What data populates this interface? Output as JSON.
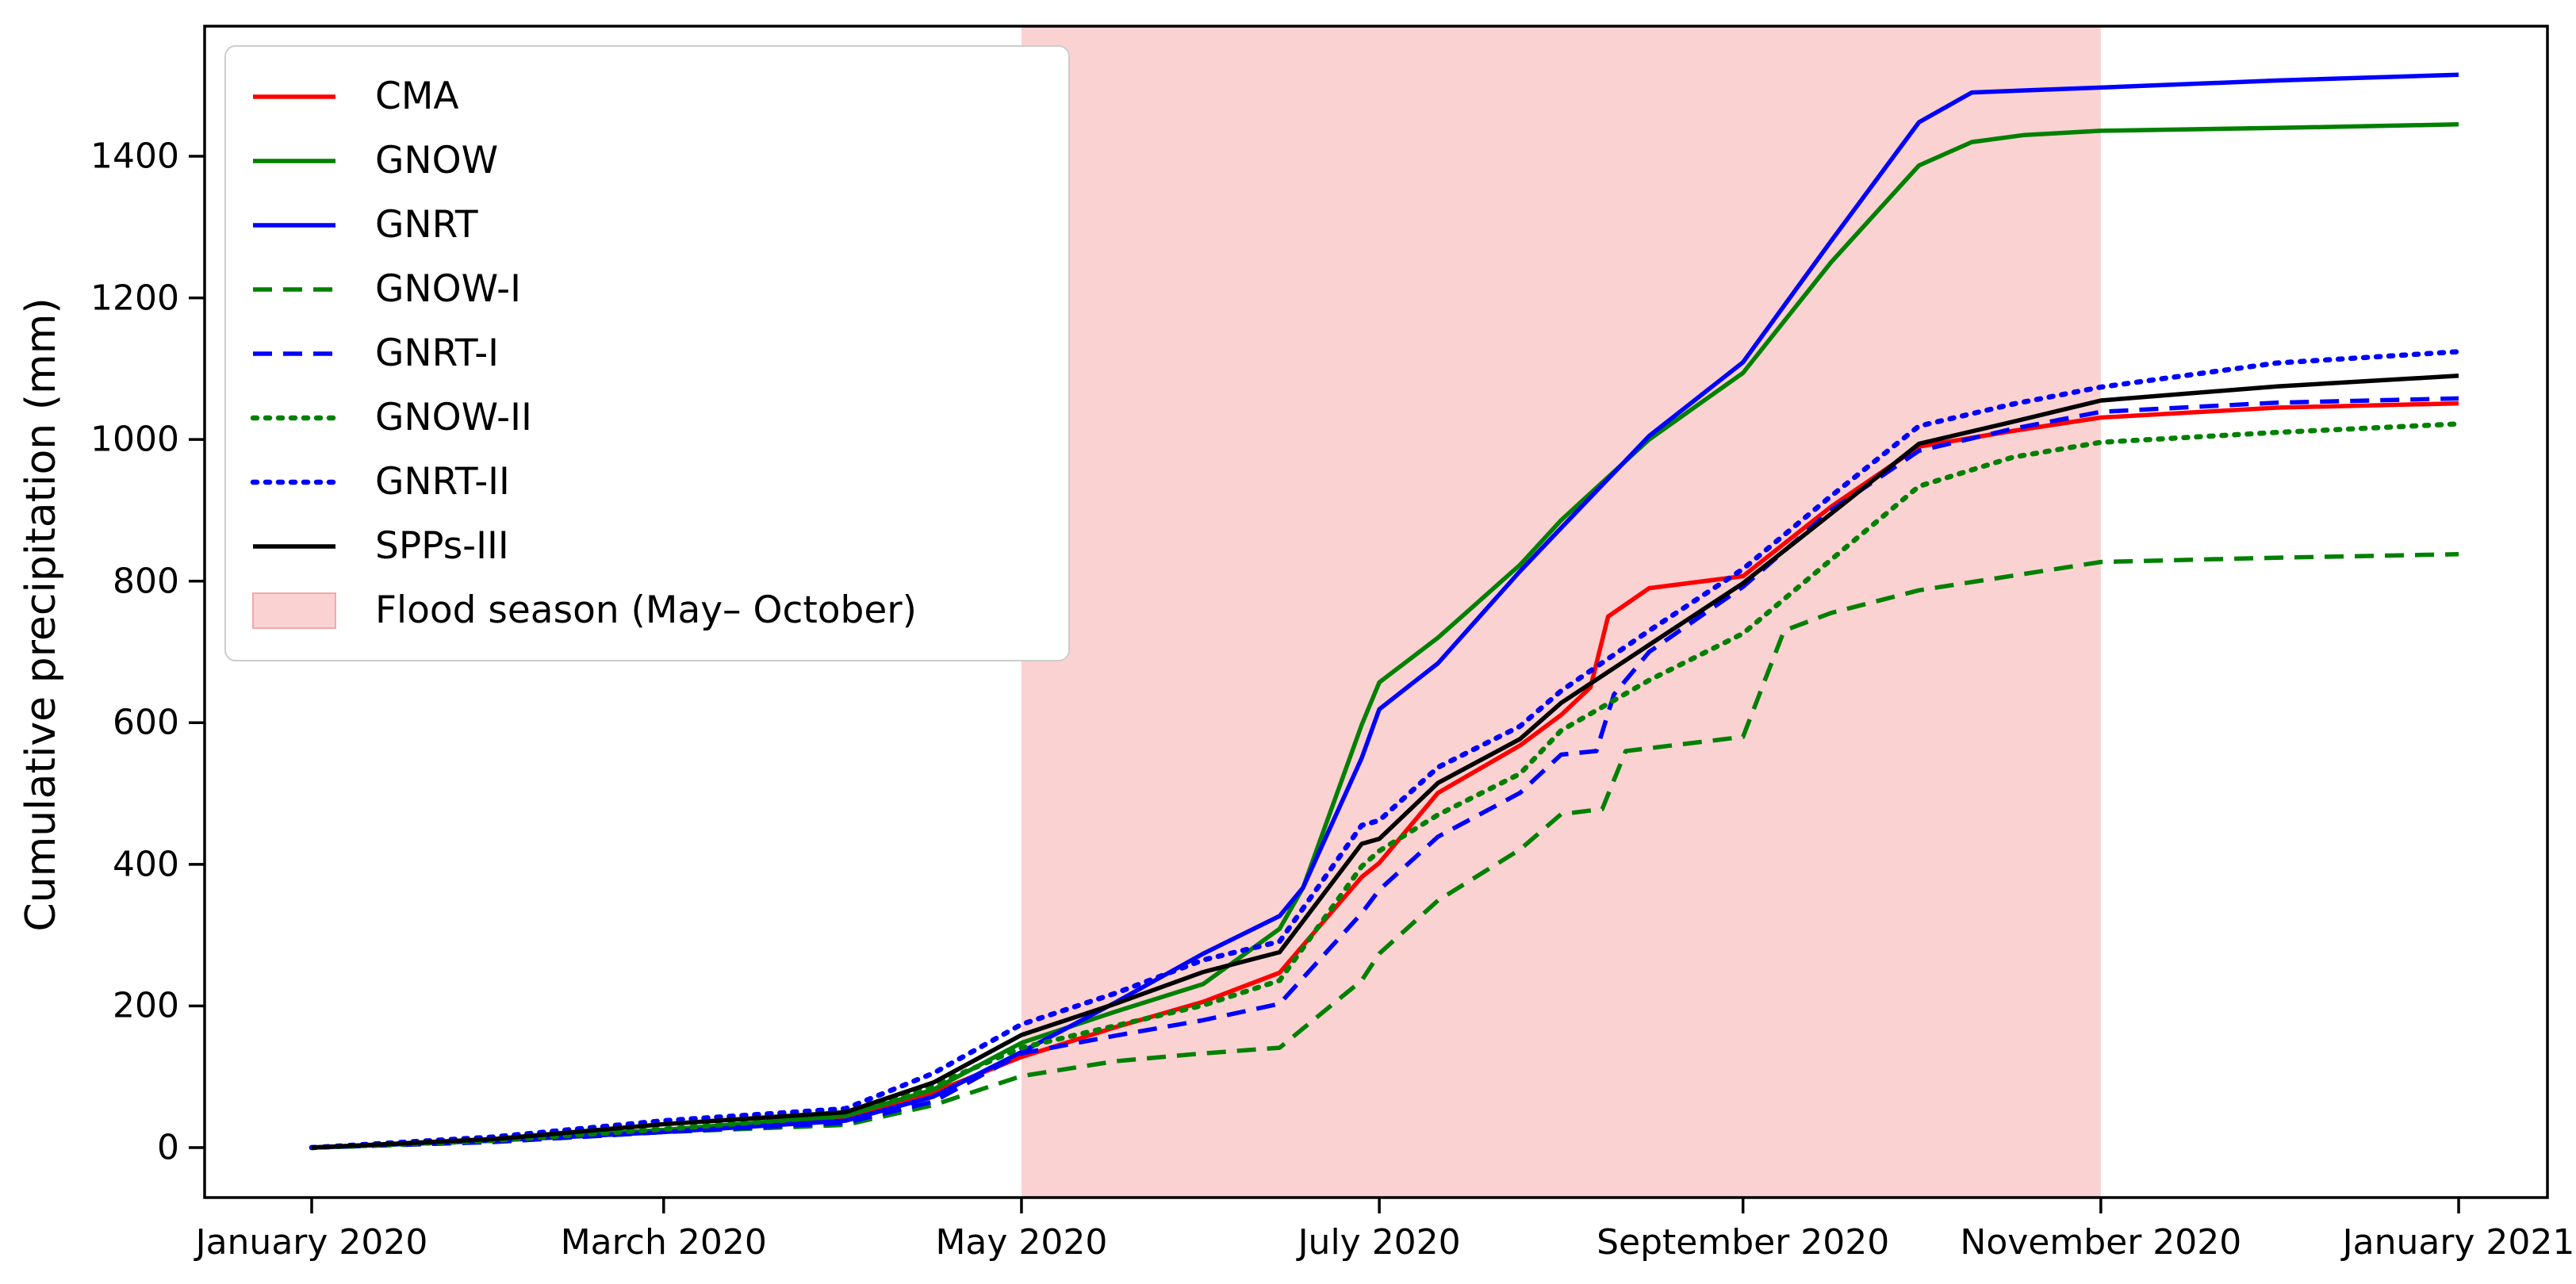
{
  "figure": {
    "ylabel": "Cumulative precipitation (mm)"
  },
  "chart_data": {
    "type": "line",
    "title": "",
    "xlabel": "",
    "ylabel": "Cumulative precipitation (mm)",
    "x_unit": "day of year, Jan 1 2020 = 0",
    "y_unit": "mm",
    "xlim_days": [
      -18,
      381
    ],
    "ylim": [
      -70,
      1583
    ],
    "grid": false,
    "legend_position": "upper left",
    "x_ticks": [
      {
        "label": "January 2020",
        "day": 0
      },
      {
        "label": "March 2020",
        "day": 60
      },
      {
        "label": "May 2020",
        "day": 121
      },
      {
        "label": "July 2020",
        "day": 182
      },
      {
        "label": "September 2020",
        "day": 244
      },
      {
        "label": "November 2020",
        "day": 305
      },
      {
        "label": "January 2021",
        "day": 366
      }
    ],
    "y_ticks": [
      {
        "label": "0",
        "value": 0
      },
      {
        "label": "200",
        "value": 200
      },
      {
        "label": "400",
        "value": 400
      },
      {
        "label": "600",
        "value": 600
      },
      {
        "label": "800",
        "value": 800
      },
      {
        "label": "1000",
        "value": 1000
      },
      {
        "label": "1200",
        "value": 1200
      },
      {
        "label": "1400",
        "value": 1400
      }
    ],
    "flood_season": {
      "label": "Flood season (May– October)",
      "start_day": 121,
      "end_day": 305,
      "fill": "#fad2d2",
      "swatch_border": "#f2a8a8"
    },
    "series": [
      {
        "name": "CMA",
        "color": "#ff0000",
        "style": "solid",
        "points": [
          [
            0,
            0
          ],
          [
            31,
            10
          ],
          [
            60,
            25
          ],
          [
            91,
            42
          ],
          [
            106,
            78
          ],
          [
            121,
            128
          ],
          [
            137,
            170
          ],
          [
            152,
            206
          ],
          [
            165,
            247
          ],
          [
            179,
            382
          ],
          [
            182,
            402
          ],
          [
            192,
            501
          ],
          [
            206,
            568
          ],
          [
            213,
            611
          ],
          [
            218,
            650
          ],
          [
            221,
            750
          ],
          [
            228,
            790
          ],
          [
            244,
            807
          ],
          [
            259,
            905
          ],
          [
            274,
            990
          ],
          [
            290,
            1012
          ],
          [
            305,
            1031
          ],
          [
            335,
            1045
          ],
          [
            366,
            1051
          ]
        ]
      },
      {
        "name": "GNOW",
        "color": "#008000",
        "style": "solid",
        "points": [
          [
            0,
            0
          ],
          [
            31,
            10
          ],
          [
            60,
            25
          ],
          [
            91,
            45
          ],
          [
            106,
            82
          ],
          [
            121,
            148
          ],
          [
            137,
            192
          ],
          [
            152,
            231
          ],
          [
            165,
            309
          ],
          [
            169,
            367
          ],
          [
            179,
            597
          ],
          [
            182,
            657
          ],
          [
            192,
            720
          ],
          [
            206,
            823
          ],
          [
            213,
            886
          ],
          [
            228,
            1000
          ],
          [
            244,
            1094
          ],
          [
            259,
            1250
          ],
          [
            274,
            1387
          ],
          [
            283,
            1420
          ],
          [
            292,
            1430
          ],
          [
            305,
            1436
          ],
          [
            335,
            1440
          ],
          [
            366,
            1445
          ]
        ]
      },
      {
        "name": "GNRT",
        "color": "#0000ff",
        "style": "solid",
        "points": [
          [
            0,
            0
          ],
          [
            31,
            10
          ],
          [
            60,
            22
          ],
          [
            91,
            38
          ],
          [
            106,
            72
          ],
          [
            121,
            135
          ],
          [
            137,
            205
          ],
          [
            152,
            274
          ],
          [
            165,
            327
          ],
          [
            169,
            367
          ],
          [
            179,
            550
          ],
          [
            182,
            619
          ],
          [
            192,
            684
          ],
          [
            206,
            814
          ],
          [
            213,
            875
          ],
          [
            228,
            1005
          ],
          [
            244,
            1109
          ],
          [
            259,
            1280
          ],
          [
            274,
            1448
          ],
          [
            283,
            1490
          ],
          [
            305,
            1497
          ],
          [
            335,
            1507
          ],
          [
            366,
            1515
          ]
        ]
      },
      {
        "name": "GNOW-I",
        "color": "#008000",
        "style": "dashed",
        "points": [
          [
            0,
            0
          ],
          [
            31,
            8
          ],
          [
            60,
            22
          ],
          [
            91,
            32
          ],
          [
            106,
            60
          ],
          [
            121,
            101
          ],
          [
            137,
            122
          ],
          [
            152,
            133
          ],
          [
            165,
            141
          ],
          [
            179,
            236
          ],
          [
            182,
            274
          ],
          [
            192,
            349
          ],
          [
            206,
            421
          ],
          [
            213,
            471
          ],
          [
            220,
            478
          ],
          [
            224,
            560
          ],
          [
            244,
            580
          ],
          [
            251,
            730
          ],
          [
            259,
            755
          ],
          [
            274,
            787
          ],
          [
            305,
            827
          ],
          [
            335,
            833
          ],
          [
            366,
            838
          ]
        ]
      },
      {
        "name": "GNRT-I",
        "color": "#0000ff",
        "style": "dashed",
        "points": [
          [
            0,
            0
          ],
          [
            31,
            8
          ],
          [
            60,
            22
          ],
          [
            91,
            35
          ],
          [
            106,
            65
          ],
          [
            121,
            133
          ],
          [
            137,
            158
          ],
          [
            152,
            180
          ],
          [
            165,
            203
          ],
          [
            179,
            331
          ],
          [
            182,
            364
          ],
          [
            192,
            439
          ],
          [
            206,
            501
          ],
          [
            213,
            555
          ],
          [
            219,
            560
          ],
          [
            222,
            640
          ],
          [
            228,
            700
          ],
          [
            244,
            792
          ],
          [
            259,
            900
          ],
          [
            274,
            984
          ],
          [
            290,
            1015
          ],
          [
            305,
            1039
          ],
          [
            335,
            1052
          ],
          [
            366,
            1058
          ]
        ]
      },
      {
        "name": "GNOW-II",
        "color": "#008000",
        "style": "dotted",
        "points": [
          [
            0,
            0
          ],
          [
            31,
            10
          ],
          [
            60,
            26
          ],
          [
            91,
            45
          ],
          [
            106,
            88
          ],
          [
            121,
            141
          ],
          [
            137,
            172
          ],
          [
            152,
            201
          ],
          [
            165,
            236
          ],
          [
            179,
            397
          ],
          [
            182,
            419
          ],
          [
            192,
            470
          ],
          [
            206,
            528
          ],
          [
            213,
            589
          ],
          [
            228,
            660
          ],
          [
            244,
            726
          ],
          [
            259,
            830
          ],
          [
            274,
            934
          ],
          [
            290,
            975
          ],
          [
            305,
            996
          ],
          [
            335,
            1010
          ],
          [
            366,
            1022
          ]
        ]
      },
      {
        "name": "GNRT-II",
        "color": "#0000ff",
        "style": "dotted",
        "points": [
          [
            0,
            0
          ],
          [
            31,
            15
          ],
          [
            60,
            38
          ],
          [
            91,
            55
          ],
          [
            106,
            105
          ],
          [
            121,
            174
          ],
          [
            137,
            218
          ],
          [
            152,
            265
          ],
          [
            165,
            291
          ],
          [
            179,
            455
          ],
          [
            182,
            462
          ],
          [
            192,
            537
          ],
          [
            206,
            595
          ],
          [
            213,
            645
          ],
          [
            228,
            730
          ],
          [
            244,
            817
          ],
          [
            259,
            920
          ],
          [
            274,
            1019
          ],
          [
            290,
            1050
          ],
          [
            305,
            1074
          ],
          [
            335,
            1108
          ],
          [
            366,
            1124
          ]
        ]
      },
      {
        "name": "SPPs-III",
        "color": "#000000",
        "style": "solid",
        "points": [
          [
            0,
            0
          ],
          [
            31,
            12
          ],
          [
            60,
            33
          ],
          [
            91,
            50
          ],
          [
            106,
            92
          ],
          [
            121,
            159
          ],
          [
            137,
            203
          ],
          [
            152,
            248
          ],
          [
            165,
            276
          ],
          [
            179,
            429
          ],
          [
            182,
            436
          ],
          [
            192,
            515
          ],
          [
            206,
            577
          ],
          [
            213,
            628
          ],
          [
            228,
            710
          ],
          [
            244,
            797
          ],
          [
            259,
            895
          ],
          [
            274,
            994
          ],
          [
            290,
            1025
          ],
          [
            305,
            1055
          ],
          [
            335,
            1075
          ],
          [
            366,
            1090
          ]
        ]
      }
    ]
  }
}
